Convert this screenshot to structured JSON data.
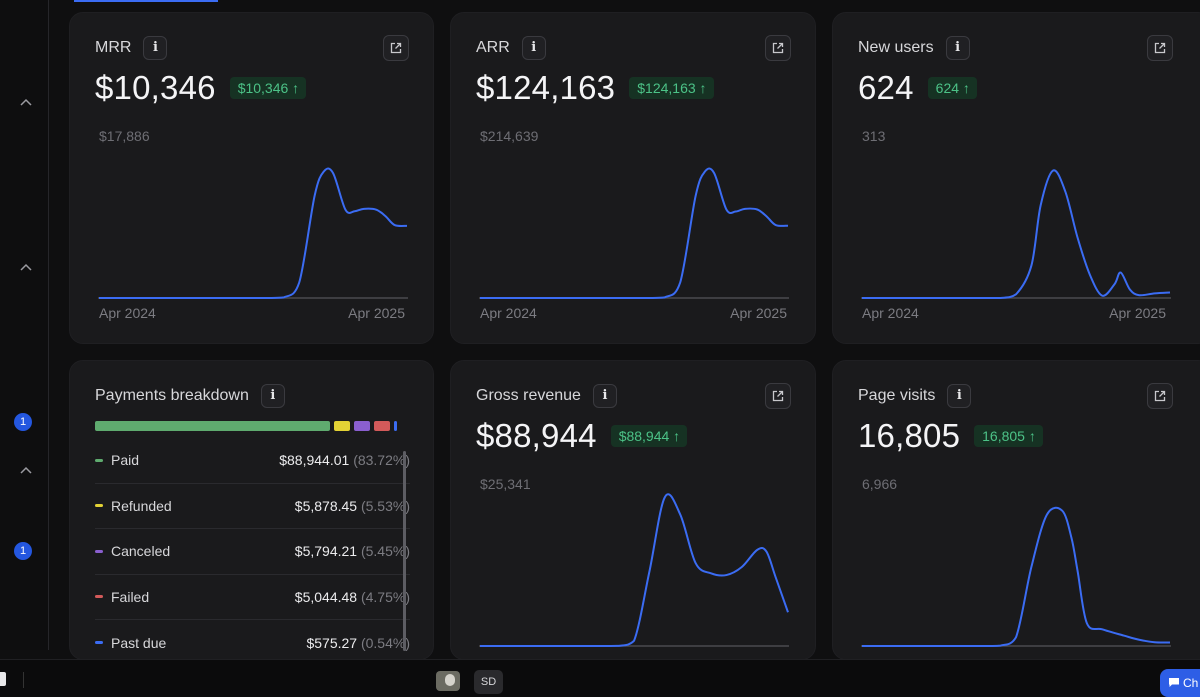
{
  "colors": {
    "accent": "#3b6cf3",
    "positive_bg": "#163223",
    "positive_fg": "#4cc287",
    "axis": "#4a4a4f"
  },
  "rail": {
    "expand_icons": [
      "chevron-up-icon",
      "chevron-up-icon",
      "chevron-up-icon"
    ],
    "badges": [
      "1",
      "1"
    ]
  },
  "cards": {
    "mrr": {
      "title": "MRR",
      "value": "$10,346",
      "badge": "$10,346 ↑",
      "ymax": "$17,886",
      "x_start": "Apr 2024",
      "x_end": "Apr 2025",
      "chart_data": {
        "type": "line",
        "title": "",
        "ylim": [
          0,
          17886
        ],
        "x_range": [
          "Apr 2024",
          "Apr 2025"
        ],
        "x": [
          0,
          0.1,
          0.2,
          0.3,
          0.4,
          0.5,
          0.55,
          0.6,
          0.65,
          0.7,
          0.73,
          0.76,
          0.8,
          0.83,
          0.86,
          0.9,
          0.93,
          0.96,
          1.0
        ],
        "y": [
          0,
          0,
          0,
          0,
          0,
          0,
          0,
          80,
          1900,
          12600,
          15600,
          15400,
          10900,
          10700,
          11000,
          10900,
          10100,
          9000,
          8900
        ]
      }
    },
    "arr": {
      "title": "ARR",
      "value": "$124,163",
      "badge": "$124,163 ↑",
      "ymax": "$214,639",
      "x_start": "Apr 2024",
      "x_end": "Apr 2025",
      "chart_data": {
        "type": "line",
        "title": "",
        "ylim": [
          0,
          214639
        ],
        "x_range": [
          "Apr 2024",
          "Apr 2025"
        ],
        "x": [
          0,
          0.1,
          0.2,
          0.3,
          0.4,
          0.5,
          0.55,
          0.6,
          0.65,
          0.7,
          0.73,
          0.76,
          0.8,
          0.83,
          0.86,
          0.9,
          0.93,
          0.96,
          1.0
        ],
        "y": [
          0,
          0,
          0,
          0,
          0,
          0,
          0,
          1000,
          23000,
          151000,
          187000,
          185000,
          131000,
          128000,
          132000,
          131000,
          121000,
          108000,
          107000
        ]
      }
    },
    "new_users": {
      "title": "New users",
      "value": "624",
      "badge": "624 ↑",
      "ymax": "313",
      "x_start": "Apr 2024",
      "x_end": "Apr 2025",
      "chart_data": {
        "type": "line",
        "title": "",
        "ylim": [
          0,
          313
        ],
        "x_range": [
          "Apr 2024",
          "Apr 2025"
        ],
        "x": [
          0,
          0.2,
          0.4,
          0.45,
          0.5,
          0.55,
          0.58,
          0.62,
          0.66,
          0.7,
          0.74,
          0.78,
          0.82,
          0.84,
          0.87,
          0.9,
          0.95,
          1.0
        ],
        "y": [
          0,
          0,
          0,
          0,
          8,
          70,
          200,
          275,
          230,
          130,
          50,
          5,
          30,
          55,
          18,
          6,
          10,
          12
        ]
      }
    },
    "gross_revenue": {
      "title": "Gross revenue",
      "value": "$88,944",
      "badge": "$88,944 ↑",
      "ymax": "$25,341",
      "chart_data": {
        "type": "line",
        "title": "",
        "ylim": [
          0,
          25341
        ],
        "x": [
          0,
          0.2,
          0.4,
          0.45,
          0.5,
          0.55,
          0.6,
          0.65,
          0.7,
          0.75,
          0.8,
          0.85,
          0.9,
          0.93,
          0.96,
          1.0
        ],
        "y": [
          0,
          0,
          0,
          20,
          900,
          13000,
          26000,
          23000,
          14500,
          12700,
          12400,
          13800,
          16800,
          16500,
          12000,
          5900
        ]
      }
    },
    "page_visits": {
      "title": "Page visits",
      "value": "16,805",
      "badge": "16,805 ↑",
      "ymax": "6,966",
      "chart_data": {
        "type": "line",
        "title": "",
        "ylim": [
          0,
          6966
        ],
        "x": [
          0,
          0.2,
          0.4,
          0.45,
          0.5,
          0.55,
          0.6,
          0.65,
          0.68,
          0.7,
          0.73,
          0.78,
          0.85,
          0.9,
          0.95,
          1.0
        ],
        "y": [
          0,
          0,
          0,
          20,
          420,
          3800,
          6300,
          6500,
          5200,
          3600,
          1100,
          800,
          500,
          300,
          180,
          170
        ]
      }
    },
    "payments": {
      "title": "Payments breakdown",
      "rows": [
        {
          "name": "Paid",
          "amount": "$88,944.01",
          "pct": "(83.72%)",
          "color": "#5fab6f",
          "share": 83.72
        },
        {
          "name": "Refunded",
          "amount": "$5,878.45",
          "pct": "(5.53%)",
          "color": "#e3d235",
          "share": 5.53
        },
        {
          "name": "Canceled",
          "amount": "$5,794.21",
          "pct": "(5.45%)",
          "color": "#8a5fcf",
          "share": 5.45
        },
        {
          "name": "Failed",
          "amount": "$5,044.48",
          "pct": "(4.75%)",
          "color": "#d35a5a",
          "share": 4.75
        },
        {
          "name": "Past due",
          "amount": "$575.27",
          "pct": "(0.54%)",
          "color": "#3b6cf3",
          "share": 0.54
        }
      ]
    }
  },
  "bottombar": {
    "sd_label": "SD",
    "chat_label": "Ch"
  }
}
